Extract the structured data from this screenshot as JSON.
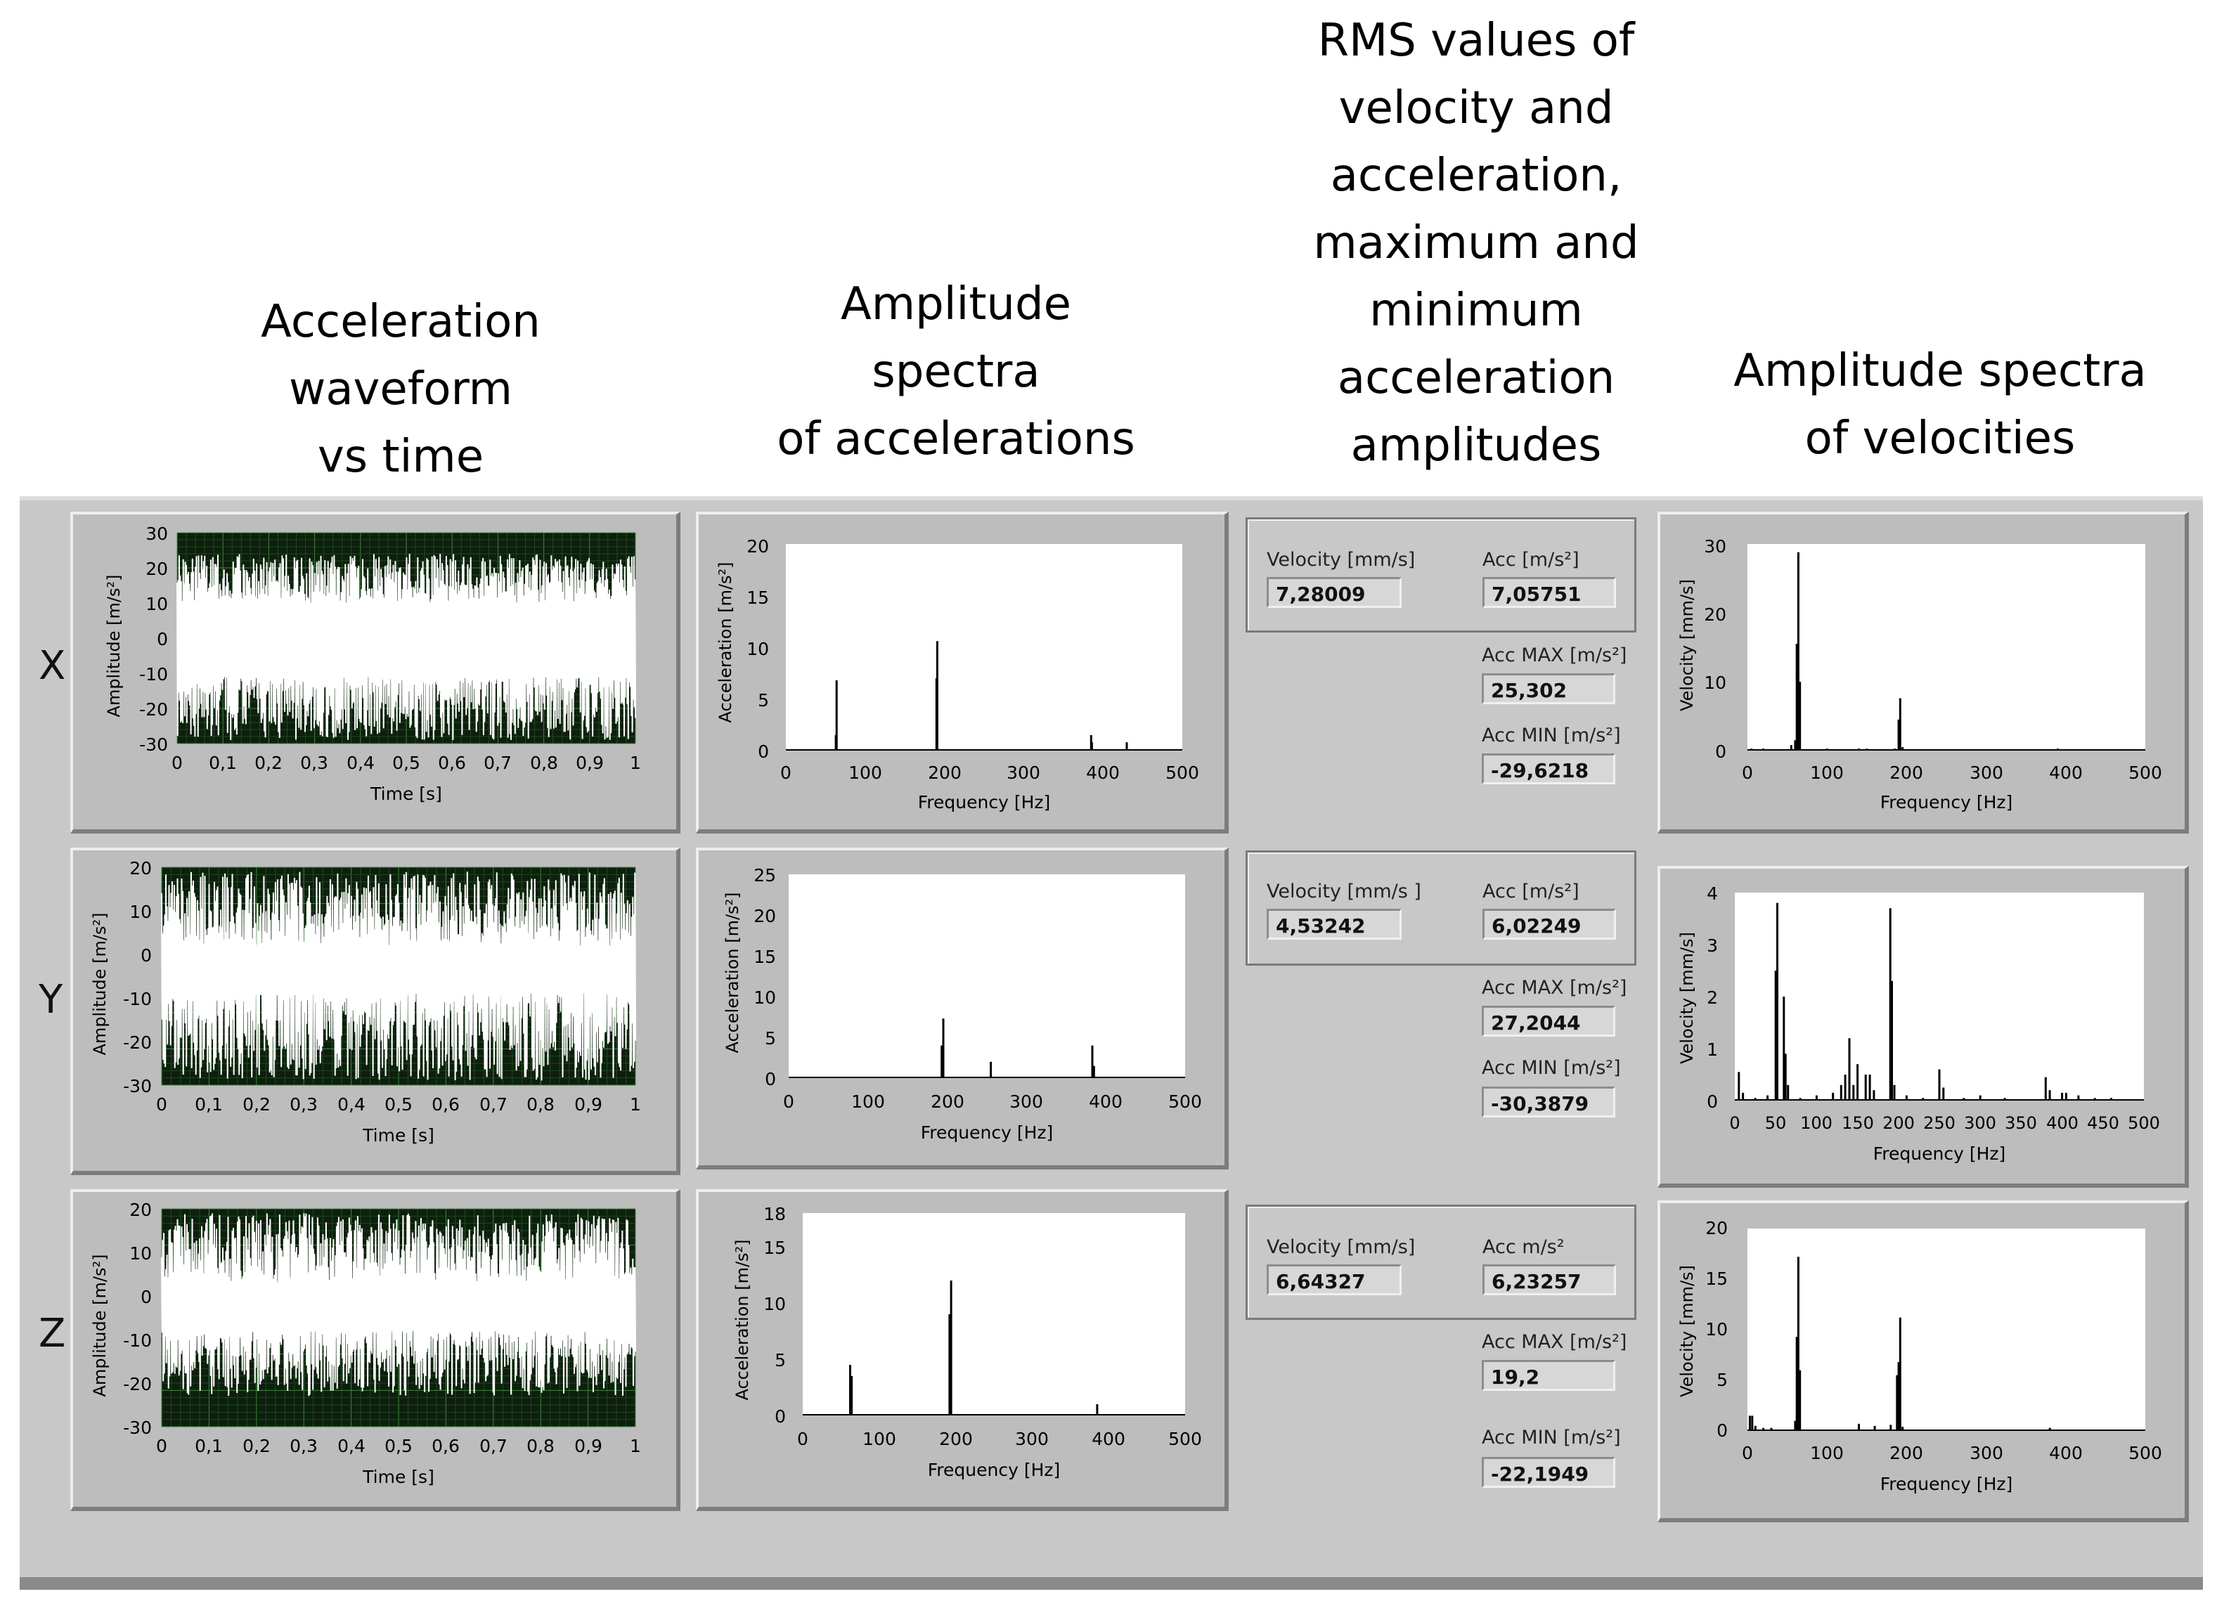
{
  "headers": {
    "acc_waveform": [
      "Acceleration",
      "waveform",
      "vs time"
    ],
    "acc_spectra": [
      "Amplitude",
      "spectra",
      "of accelerations"
    ],
    "rms": [
      "RMS values of",
      "velocity and",
      "acceleration,",
      "maximum and",
      "minimum",
      "acceleration",
      "amplitudes"
    ],
    "vel_spectra": [
      "Amplitude spectra",
      "of velocities"
    ]
  },
  "rows": [
    {
      "axis": "X",
      "waveform": {
        "ylabel": "Amplitude [m/s²]",
        "xlabel": "Time [s]",
        "yticks": [
          "30",
          "20",
          "10",
          "0",
          "-10",
          "-20",
          "-30"
        ],
        "xticks": [
          "0",
          "0,1",
          "0,2",
          "0,3",
          "0,4",
          "0,5",
          "0,6",
          "0,7",
          "0,8",
          "0,9",
          "1"
        ]
      },
      "acc_spectrum": {
        "ylabel": "Acceleration [m/s²]",
        "xlabel": "Frequency [Hz]",
        "yticks": [
          "20",
          "15",
          "10",
          "5",
          "0"
        ],
        "xticks": [
          "0",
          "100",
          "200",
          "300",
          "400",
          "500"
        ]
      },
      "rms": {
        "velocity_label": "Velocity [mm/s]",
        "velocity_value": "7,28009",
        "acc_label": "Acc [m/s²]",
        "acc_value": "7,05751",
        "accmax_label": "Acc MAX [m/s²]",
        "accmax_value": "25,302",
        "accmin_label": "Acc MIN [m/s²]",
        "accmin_value": "-29,6218"
      },
      "vel_spectrum": {
        "ylabel": "Velocity [mm/s]",
        "xlabel": "Frequency [Hz]",
        "yticks": [
          "30",
          "20",
          "10",
          "0"
        ],
        "xticks": [
          "0",
          "100",
          "200",
          "300",
          "400",
          "500"
        ]
      }
    },
    {
      "axis": "Y",
      "waveform": {
        "ylabel": "Amplitude [m/s²]",
        "xlabel": "Time [s]",
        "yticks": [
          "20",
          "10",
          "0",
          "-10",
          "-20",
          "-30"
        ],
        "xticks": [
          "0",
          "0,1",
          "0,2",
          "0,3",
          "0,4",
          "0,5",
          "0,6",
          "0,7",
          "0,8",
          "0,9",
          "1"
        ]
      },
      "acc_spectrum": {
        "ylabel": "Acceleration [m/s²]",
        "xlabel": "Frequency [Hz]",
        "yticks": [
          "25",
          "20",
          "15",
          "10",
          "5",
          "0"
        ],
        "xticks": [
          "0",
          "100",
          "200",
          "300",
          "400",
          "500"
        ]
      },
      "rms": {
        "velocity_label": "Velocity [mm/s ]",
        "velocity_value": "4,53242",
        "acc_label": "Acc [m/s²]",
        "acc_value": "6,02249",
        "accmax_label": "Acc MAX [m/s²]",
        "accmax_value": "27,2044",
        "accmin_label": "Acc MIN [m/s²]",
        "accmin_value": "-30,3879"
      },
      "vel_spectrum": {
        "ylabel": "Velocity [mm/s]",
        "xlabel": "Frequency [Hz]",
        "yticks": [
          "4",
          "3",
          "2",
          "1",
          "0"
        ],
        "xticks": [
          "0",
          "50",
          "100",
          "150",
          "200",
          "250",
          "300",
          "350",
          "400",
          "450",
          "500"
        ]
      }
    },
    {
      "axis": "Z",
      "waveform": {
        "ylabel": "Amplitude [m/s²]",
        "xlabel": "Time [s]",
        "yticks": [
          "20",
          "10",
          "0",
          "-10",
          "-20",
          "-30"
        ],
        "xticks": [
          "0",
          "0,1",
          "0,2",
          "0,3",
          "0,4",
          "0,5",
          "0,6",
          "0,7",
          "0,8",
          "0,9",
          "1"
        ]
      },
      "acc_spectrum": {
        "ylabel": "Acceleration [m/s²]",
        "xlabel": "Frequency [Hz]",
        "yticks": [
          "18",
          "15",
          "10",
          "5",
          "0"
        ],
        "xticks": [
          "0",
          "100",
          "200",
          "300",
          "400",
          "500"
        ]
      },
      "rms": {
        "velocity_label": "Velocity [mm/s]",
        "velocity_value": "6,64327",
        "acc_label": "Acc m/s²",
        "acc_value": "6,23257",
        "accmax_label": "Acc MAX [m/s²]",
        "accmax_value": "19,2",
        "accmin_label": "Acc MIN [m/s²]",
        "accmin_value": "-22,1949"
      },
      "vel_spectrum": {
        "ylabel": "Velocity [mm/s]",
        "xlabel": "Frequency [Hz]",
        "yticks": [
          "20",
          "15",
          "10",
          "5",
          "0"
        ],
        "xticks": [
          "0",
          "100",
          "200",
          "300",
          "400",
          "500"
        ]
      }
    }
  ],
  "colors": {
    "panel": "#c8c8c8",
    "plot_dark": "#0d1f0d",
    "grid_green": "#2f6b2f",
    "signal": "#ffffff"
  },
  "chart_data": [
    {
      "type": "line",
      "title": "X acceleration waveform",
      "xlabel": "Time [s]",
      "ylabel": "Amplitude [m/s²]",
      "xlim": [
        0,
        1
      ],
      "ylim": [
        -30,
        30
      ],
      "description_values": {
        "max": 25.302,
        "min": -29.6218
      }
    },
    {
      "type": "bar",
      "title": "X amplitude spectrum of accelerations",
      "xlabel": "Frequency [Hz]",
      "ylabel": "Acceleration [m/s²]",
      "xlim": [
        0,
        500
      ],
      "ylim": [
        0,
        20
      ],
      "x": [
        63,
        64,
        190,
        191,
        385,
        386,
        430
      ],
      "values": [
        1.5,
        6.8,
        7,
        10.6,
        1.5,
        0.8,
        0.8
      ]
    },
    {
      "type": "bar",
      "title": "X amplitude spectrum of velocities",
      "xlabel": "Frequency [Hz]",
      "ylabel": "Velocity [mm/s]",
      "xlim": [
        0,
        500
      ],
      "ylim": [
        0,
        30
      ],
      "x": [
        5,
        20,
        40,
        55,
        60,
        62,
        64,
        66,
        100,
        140,
        150,
        185,
        190,
        192,
        195,
        390
      ],
      "values": [
        0.3,
        0.3,
        0.2,
        0.8,
        1.5,
        15.5,
        28.8,
        10,
        0.3,
        0.3,
        0.3,
        0.3,
        4.5,
        7.6,
        0.5,
        0.3
      ]
    },
    {
      "type": "line",
      "title": "Y acceleration waveform",
      "xlabel": "Time [s]",
      "ylabel": "Amplitude [m/s²]",
      "xlim": [
        0,
        1
      ],
      "ylim": [
        -30,
        20
      ],
      "description_values": {
        "max": 27.2044,
        "min": -30.3879
      }
    },
    {
      "type": "bar",
      "title": "Y amplitude spectrum of accelerations",
      "xlabel": "Frequency [Hz]",
      "ylabel": "Acceleration [m/s²]",
      "xlim": [
        0,
        500
      ],
      "ylim": [
        0,
        25
      ],
      "x": [
        193,
        195,
        255,
        383,
        385
      ],
      "values": [
        4,
        7.3,
        2,
        4,
        1.5
      ]
    },
    {
      "type": "bar",
      "title": "Y amplitude spectrum of velocities",
      "xlabel": "Frequency [Hz]",
      "ylabel": "Velocity [mm/s]",
      "xlim": [
        0,
        500
      ],
      "ylim": [
        0,
        4
      ],
      "x": [
        5,
        10,
        25,
        40,
        50,
        52,
        60,
        62,
        65,
        80,
        100,
        120,
        130,
        135,
        140,
        145,
        150,
        160,
        165,
        170,
        190,
        192,
        195,
        210,
        230,
        250,
        255,
        280,
        300,
        330,
        380,
        385,
        400,
        405,
        420,
        440,
        460
      ],
      "values": [
        0.55,
        0.15,
        0.05,
        0.1,
        2.5,
        3.8,
        2,
        0.9,
        0.3,
        0.05,
        0.1,
        0.15,
        0.3,
        0.5,
        1.2,
        0.3,
        0.7,
        0.5,
        0.5,
        0.2,
        3.7,
        2.3,
        0.3,
        0.1,
        0.05,
        0.6,
        0.25,
        0.05,
        0.1,
        0.05,
        0.45,
        0.2,
        0.15,
        0.15,
        0.1,
        0.05,
        0.05
      ]
    },
    {
      "type": "line",
      "title": "Z acceleration waveform",
      "xlabel": "Time [s]",
      "ylabel": "Amplitude [m/s²]",
      "xlim": [
        0,
        1
      ],
      "ylim": [
        -30,
        20
      ],
      "description_values": {
        "max": 19.2,
        "min": -22.1949
      }
    },
    {
      "type": "bar",
      "title": "Z amplitude spectrum of accelerations",
      "xlabel": "Frequency [Hz]",
      "ylabel": "Acceleration [m/s²]",
      "xlim": [
        0,
        500
      ],
      "ylim": [
        0,
        18
      ],
      "x": [
        62,
        64,
        192,
        194,
        385
      ],
      "values": [
        4.5,
        3.5,
        9,
        12,
        1
      ]
    },
    {
      "type": "bar",
      "title": "Z amplitude spectrum of velocities",
      "xlabel": "Frequency [Hz]",
      "ylabel": "Velocity [mm/s]",
      "xlim": [
        0,
        500
      ],
      "ylim": [
        0,
        20
      ],
      "x": [
        3,
        6,
        10,
        20,
        30,
        60,
        62,
        64,
        66,
        140,
        160,
        180,
        188,
        190,
        192,
        195,
        380
      ],
      "values": [
        1.5,
        1.5,
        0.5,
        0.3,
        0.3,
        1,
        9.3,
        17.2,
        6,
        0.7,
        0.5,
        0.6,
        5.5,
        6.8,
        11.2,
        0.4,
        0.3
      ]
    }
  ]
}
